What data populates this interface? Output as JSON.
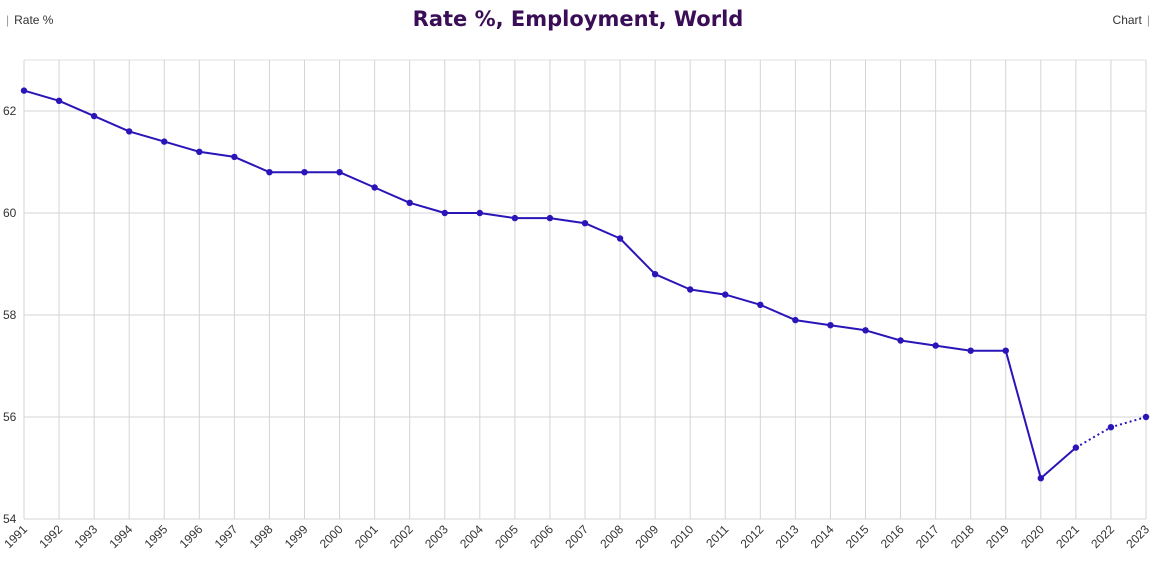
{
  "header": {
    "left_label": "Rate %",
    "right_label": "Chart",
    "separator": "|"
  },
  "chart_data": {
    "type": "line",
    "title": "Rate %, Employment, World",
    "xlabel": "",
    "ylabel": "",
    "ylim": [
      54,
      63
    ],
    "yticks": [
      54,
      56,
      58,
      60,
      62
    ],
    "grid": true,
    "line_color": "#2a15b8",
    "x": [
      "1991",
      "1992",
      "1993",
      "1994",
      "1995",
      "1996",
      "1997",
      "1998",
      "1999",
      "2000",
      "2001",
      "2002",
      "2003",
      "2004",
      "2005",
      "2006",
      "2007",
      "2008",
      "2009",
      "2010",
      "2011",
      "2012",
      "2013",
      "2014",
      "2015",
      "2016",
      "2017",
      "2018",
      "2019",
      "2020",
      "2021",
      "2022",
      "2023"
    ],
    "series": [
      {
        "values": [
          62.4,
          62.2,
          61.9,
          61.6,
          61.4,
          61.2,
          61.1,
          60.8,
          60.8,
          60.8,
          60.5,
          60.2,
          60.0,
          60.0,
          59.9,
          59.9,
          59.8,
          59.5,
          58.8,
          58.5,
          58.4,
          58.2,
          57.9,
          57.8,
          57.7,
          57.5,
          57.4,
          57.3,
          57.3,
          54.8,
          55.4,
          55.8,
          56.0
        ],
        "dotted_from": "2021"
      }
    ]
  }
}
